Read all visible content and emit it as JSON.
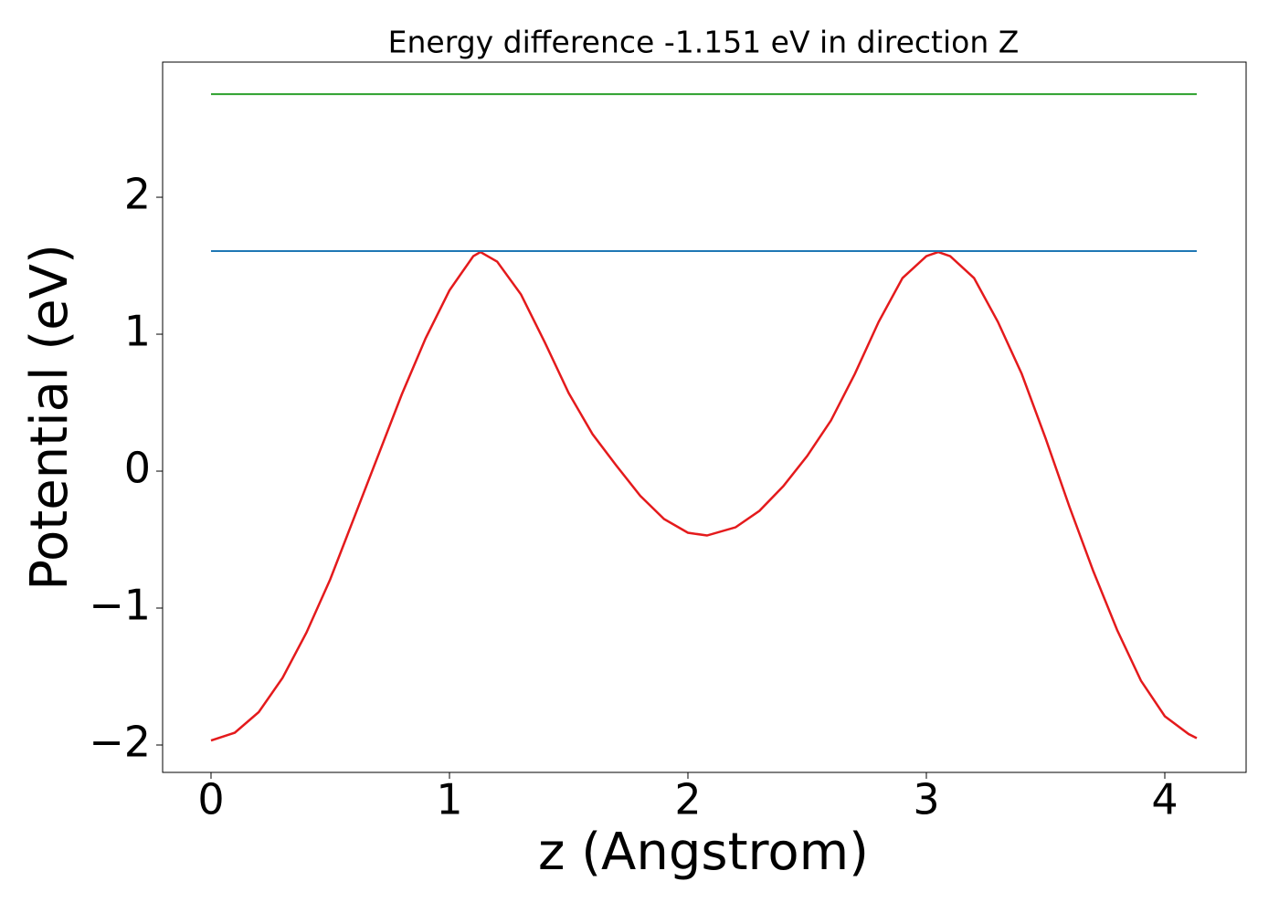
{
  "chart_data": {
    "type": "line",
    "title": "Energy difference -1.151 eV in direction Z",
    "x_label": "z (Angstrom)",
    "y_label": "Potential (eV)",
    "xlim": [
      -0.203,
      4.341
    ],
    "ylim": [
      -2.2,
      2.987
    ],
    "xticks": [
      0,
      1,
      2,
      3,
      4
    ],
    "yticks": [
      {
        "value": -2,
        "label": "−2"
      },
      {
        "value": -1,
        "label": "−1"
      },
      0,
      1,
      2
    ],
    "grid": false,
    "series": [
      {
        "color": "#e41a1c",
        "x": [
          0,
          0.1,
          0.2,
          0.3,
          0.4,
          0.5,
          0.6,
          0.7,
          0.8,
          0.9,
          1.0,
          1.1,
          1.13,
          1.2,
          1.3,
          1.4,
          1.5,
          1.6,
          1.7,
          1.8,
          1.9,
          2.0,
          2.08,
          2.2,
          2.3,
          2.4,
          2.5,
          2.6,
          2.7,
          2.8,
          2.9,
          3.0,
          3.05,
          3.1,
          3.2,
          3.3,
          3.4,
          3.5,
          3.6,
          3.7,
          3.8,
          3.9,
          4.0,
          4.1,
          4.134
        ],
        "values": [
          -1.967,
          -1.91,
          -1.76,
          -1.51,
          -1.18,
          -0.79,
          -0.34,
          0.11,
          0.56,
          0.97,
          1.32,
          1.57,
          1.6,
          1.53,
          1.29,
          0.94,
          0.57,
          0.27,
          0.04,
          -0.18,
          -0.35,
          -0.45,
          -0.47,
          -0.41,
          -0.29,
          -0.11,
          0.11,
          0.37,
          0.71,
          1.09,
          1.41,
          1.57,
          1.6,
          1.57,
          1.41,
          1.09,
          0.71,
          0.24,
          -0.26,
          -0.73,
          -1.16,
          -1.53,
          -1.79,
          -1.92,
          -1.95
        ]
      },
      {
        "color": "#1f77b4",
        "x": [
          0,
          4.134
        ],
        "values": [
          1.607,
          1.607
        ]
      },
      {
        "color": "#2ca02c",
        "x": [
          0,
          4.134
        ],
        "values": [
          2.753,
          2.753
        ]
      }
    ]
  }
}
